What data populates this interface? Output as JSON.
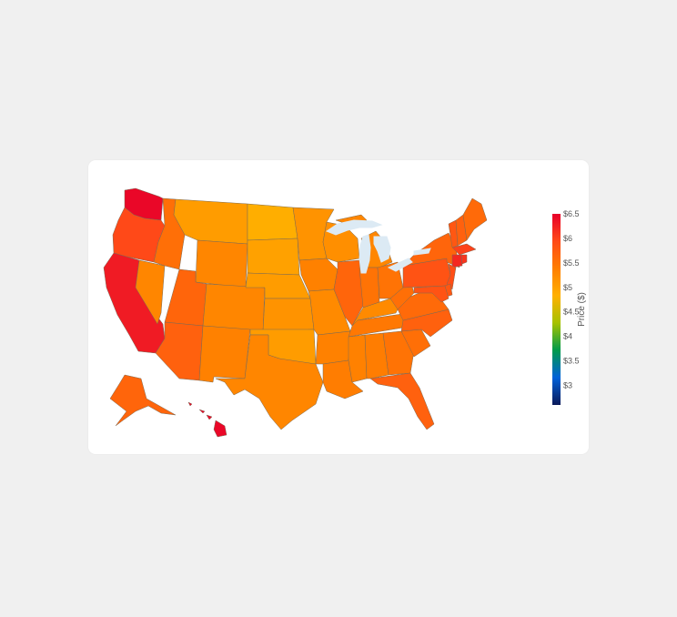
{
  "chart_data": {
    "type": "choropleth",
    "title": "",
    "colorbar": {
      "title": "Price ($)",
      "range": [
        2.6,
        6.5
      ],
      "ticks": [
        "$3",
        "$3.5",
        "$4",
        "$4.5",
        "$5",
        "$5.5",
        "$6",
        "$6.5"
      ],
      "tick_values": [
        3,
        3.5,
        4,
        4.5,
        5,
        5.5,
        6,
        6.5
      ],
      "colorscale": [
        "#0b1a5a",
        "#0061d9",
        "#009a4c",
        "#a6c200",
        "#ffb000",
        "#ff7e00",
        "#ff4a18",
        "#e8002a"
      ]
    },
    "lakes_color": "#dceaf4",
    "border_color": "#7a6a55",
    "states": [
      {
        "state": "WA",
        "value": 6.45
      },
      {
        "state": "OR",
        "value": 5.95
      },
      {
        "state": "CA",
        "value": 6.3
      },
      {
        "state": "NV",
        "value": 5.3
      },
      {
        "state": "ID",
        "value": 5.55
      },
      {
        "state": "MT",
        "value": 5.05
      },
      {
        "state": "WY",
        "value": 5.3
      },
      {
        "state": "UT",
        "value": 5.65
      },
      {
        "state": "AZ",
        "value": 5.7
      },
      {
        "state": "CO",
        "value": 5.3
      },
      {
        "state": "NM",
        "value": 5.35
      },
      {
        "state": "ND",
        "value": 4.85
      },
      {
        "state": "SD",
        "value": 5.0
      },
      {
        "state": "NE",
        "value": 5.05
      },
      {
        "state": "KS",
        "value": 5.15
      },
      {
        "state": "OK",
        "value": 5.05
      },
      {
        "state": "TX",
        "value": 5.3
      },
      {
        "state": "MN",
        "value": 5.15
      },
      {
        "state": "IA",
        "value": 5.35
      },
      {
        "state": "MO",
        "value": 5.25
      },
      {
        "state": "AR",
        "value": 5.35
      },
      {
        "state": "LA",
        "value": 5.4
      },
      {
        "state": "WI",
        "value": 5.2
      },
      {
        "state": "IL",
        "value": 5.65
      },
      {
        "state": "MI",
        "value": 5.3
      },
      {
        "state": "IN",
        "value": 5.5
      },
      {
        "state": "OH",
        "value": 5.5
      },
      {
        "state": "KY",
        "value": 5.25
      },
      {
        "state": "TN",
        "value": 5.45
      },
      {
        "state": "MS",
        "value": 5.35
      },
      {
        "state": "AL",
        "value": 5.4
      },
      {
        "state": "GA",
        "value": 5.5
      },
      {
        "state": "FL",
        "value": 5.7
      },
      {
        "state": "SC",
        "value": 5.55
      },
      {
        "state": "NC",
        "value": 5.7
      },
      {
        "state": "VA",
        "value": 5.6
      },
      {
        "state": "WV",
        "value": 5.55
      },
      {
        "state": "PA",
        "value": 5.85
      },
      {
        "state": "NY",
        "value": 5.65
      },
      {
        "state": "VT",
        "value": 5.8
      },
      {
        "state": "NH",
        "value": 5.7
      },
      {
        "state": "ME",
        "value": 5.6
      },
      {
        "state": "MA",
        "value": 6.0
      },
      {
        "state": "CT",
        "value": 6.2
      },
      {
        "state": "RI",
        "value": 6.1
      },
      {
        "state": "NJ",
        "value": 5.9
      },
      {
        "state": "DE",
        "value": 5.8
      },
      {
        "state": "MD",
        "value": 5.85
      },
      {
        "state": "AK",
        "value": 5.65
      },
      {
        "state": "HI",
        "value": 6.45
      }
    ]
  }
}
